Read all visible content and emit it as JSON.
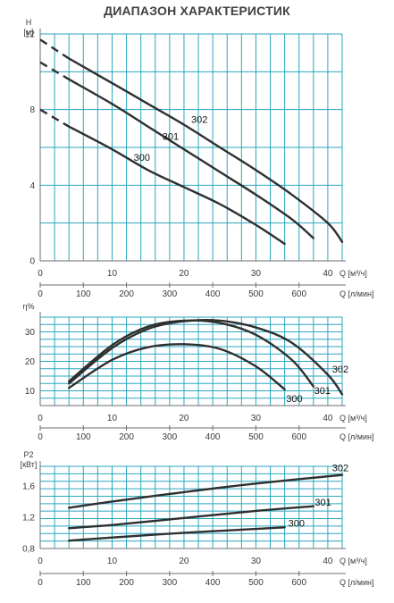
{
  "title": "ДИАПАЗОН ХАРАКТЕРИСТИК",
  "colors": {
    "grid": "#2aa7bf",
    "axis": "#6e6e6e",
    "curve": "#2f2f2f"
  },
  "chart_data": [
    {
      "type": "line",
      "panel": "head",
      "ylabel_top": "H",
      "ylabel_unit": "[м]",
      "xlabel": "Q [м³/ч]",
      "xlabel_secondary": "Q [л/мин]",
      "xlim": [
        0,
        42
      ],
      "ylim": [
        0,
        12
      ],
      "x_ticks": [
        0,
        10,
        20,
        30,
        40
      ],
      "x2_ticks": [
        0,
        100,
        200,
        300,
        400,
        500,
        600
      ],
      "y_ticks": [
        0,
        4,
        8,
        12
      ],
      "dashed_prefix": true,
      "series": [
        {
          "name": "302",
          "x": [
            0,
            4,
            10,
            15,
            20,
            25,
            30,
            35,
            40,
            42
          ],
          "y": [
            11.7,
            10.7,
            9.4,
            8.3,
            7.2,
            6.0,
            4.8,
            3.5,
            2.0,
            1.0
          ]
        },
        {
          "name": "301",
          "x": [
            0,
            4,
            10,
            15,
            20,
            25,
            30,
            35,
            38
          ],
          "y": [
            10.5,
            9.6,
            8.3,
            7.1,
            5.9,
            4.7,
            3.5,
            2.2,
            1.2
          ]
        },
        {
          "name": "300",
          "x": [
            0,
            4,
            10,
            15,
            20,
            25,
            30,
            34
          ],
          "y": [
            8.0,
            7.1,
            5.9,
            4.8,
            3.9,
            3.0,
            1.9,
            0.9
          ]
        }
      ],
      "labels": [
        {
          "text": "302",
          "x": 21,
          "y": 7.3
        },
        {
          "text": "301",
          "x": 17,
          "y": 6.4
        },
        {
          "text": "300",
          "x": 13,
          "y": 5.3
        }
      ]
    },
    {
      "type": "line",
      "panel": "efficiency",
      "ylabel_top": "η%",
      "xlabel": "Q [м³/ч]",
      "xlabel_secondary": "Q [л/мин]",
      "xlim": [
        0,
        42
      ],
      "ylim": [
        5,
        35
      ],
      "x_ticks": [
        0,
        10,
        20,
        30,
        40
      ],
      "x2_ticks": [
        0,
        100,
        200,
        300,
        400,
        500,
        600
      ],
      "y_ticks": [
        10,
        20,
        30
      ],
      "series": [
        {
          "name": "302",
          "x": [
            4,
            10,
            15,
            20,
            25,
            30,
            35,
            40,
            42
          ],
          "y": [
            12.5,
            24.5,
            31.0,
            33.6,
            33.8,
            31.5,
            26.3,
            15.5,
            8.8
          ]
        },
        {
          "name": "301",
          "x": [
            4,
            10,
            15,
            20,
            25,
            30,
            35,
            38
          ],
          "y": [
            13.2,
            25.5,
            31.8,
            33.8,
            33.0,
            29.0,
            20.5,
            11.5
          ]
        },
        {
          "name": "300",
          "x": [
            4,
            10,
            15,
            20,
            25,
            30,
            34
          ],
          "y": [
            11.0,
            20.5,
            24.8,
            25.8,
            24.2,
            18.3,
            10.5
          ]
        }
      ],
      "labels": [
        {
          "text": "302",
          "x": 40.6,
          "y": 16.2
        },
        {
          "text": "301",
          "x": 38.1,
          "y": 9.0
        },
        {
          "text": "300",
          "x": 34.2,
          "y": 6.2
        }
      ]
    },
    {
      "type": "line",
      "panel": "power",
      "ylabel_top": "P2",
      "ylabel_unit": "[кВт]",
      "xlabel": "Q [м³/ч]",
      "xlabel_secondary": "Q [л/мин]",
      "xlim": [
        0,
        42
      ],
      "ylim": [
        0.8,
        1.85
      ],
      "x_ticks": [
        0,
        10,
        20,
        30,
        40
      ],
      "x2_ticks": [
        0,
        100,
        200,
        300,
        400,
        500,
        600
      ],
      "y_ticks": [
        0.8,
        1.2,
        1.6
      ],
      "y_tick_labels": [
        "0,8",
        "1,2",
        "1,6"
      ],
      "series": [
        {
          "name": "302",
          "x": [
            4,
            10,
            20,
            30,
            42
          ],
          "y": [
            1.32,
            1.4,
            1.52,
            1.63,
            1.74
          ]
        },
        {
          "name": "301",
          "x": [
            4,
            10,
            20,
            30,
            38
          ],
          "y": [
            1.06,
            1.1,
            1.19,
            1.28,
            1.34
          ]
        },
        {
          "name": "300",
          "x": [
            4,
            10,
            20,
            30,
            34
          ],
          "y": [
            0.9,
            0.94,
            1.0,
            1.05,
            1.07
          ]
        }
      ],
      "labels": [
        {
          "text": "302",
          "x": 40.6,
          "y": 1.79
        },
        {
          "text": "301",
          "x": 38.2,
          "y": 1.35
        },
        {
          "text": "300",
          "x": 34.5,
          "y": 1.08
        }
      ]
    }
  ]
}
